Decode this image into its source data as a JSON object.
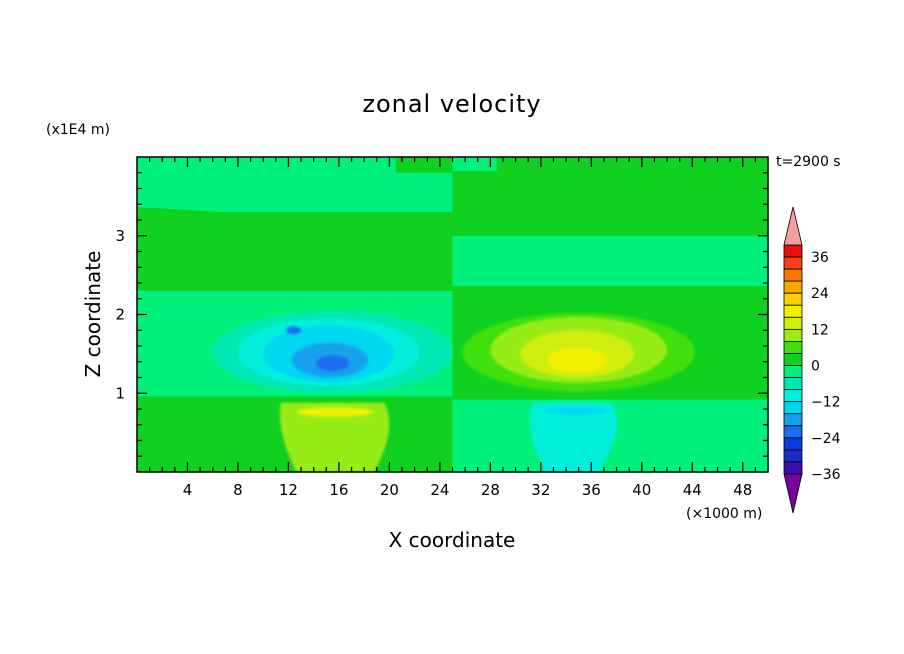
{
  "chart_data": {
    "type": "heatmap",
    "title": "zonal velocity",
    "xlabel": "X coordinate",
    "ylabel": "Z coordinate",
    "x_unit": "(×1000 m)",
    "y_unit": "(x1E4 m)",
    "time_label": "t=2900 s",
    "xlim": [
      0,
      50
    ],
    "ylim": [
      0,
      4
    ],
    "x_ticks": [
      "4",
      "8",
      "12",
      "16",
      "20",
      "24",
      "28",
      "32",
      "36",
      "40",
      "44",
      "48"
    ],
    "y_ticks": [
      "1",
      "2",
      "3"
    ],
    "colorbar": {
      "levels": [
        -40,
        -36,
        -32,
        -28,
        -24,
        -20,
        -16,
        -12,
        -8,
        -4,
        0,
        4,
        8,
        12,
        16,
        20,
        24,
        28,
        32,
        36,
        40
      ],
      "tick_labels": [
        "36",
        "24",
        "12",
        "0",
        "−12",
        "−24",
        "−36"
      ],
      "colors": [
        "#7a00a0",
        "#3a0fa8",
        "#2028c8",
        "#0a3ae0",
        "#1a6ef0",
        "#18a0ee",
        "#00d8f0",
        "#00f0dc",
        "#00e8b4",
        "#00f07c",
        "#10d020",
        "#40e010",
        "#98ec18",
        "#d0ee10",
        "#f0f000",
        "#f8d000",
        "#f8a800",
        "#f87800",
        "#f84018",
        "#e81010",
        "#f4a0a0"
      ]
    },
    "features": [
      {
        "x": 15,
        "z": 1.35,
        "value": -20
      },
      {
        "x": 35,
        "z": 1.35,
        "value": 14
      },
      {
        "x": 15,
        "z": 0.5,
        "value": 6
      },
      {
        "x": 35,
        "z": 0.5,
        "value": -6
      }
    ]
  }
}
